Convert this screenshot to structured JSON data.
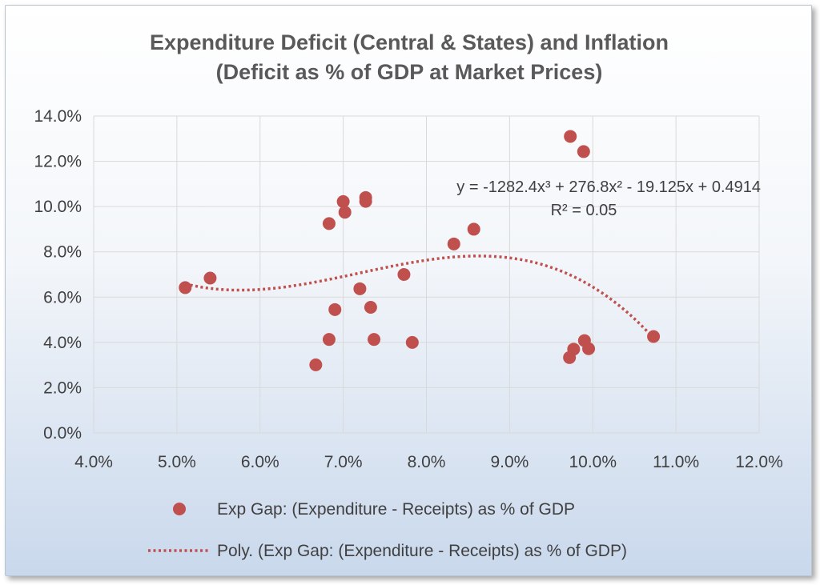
{
  "chart_data": {
    "type": "scatter",
    "title": [
      "Expenditure Deficit (Central & States) and Inflation",
      "(Deficit as % of GDP at Market Prices)"
    ],
    "xlabel": "",
    "ylabel": "",
    "xlim": [
      0.04,
      0.12
    ],
    "ylim": [
      0.0,
      0.14
    ],
    "x_ticks": [
      "4.0%",
      "5.0%",
      "6.0%",
      "7.0%",
      "8.0%",
      "9.0%",
      "10.0%",
      "11.0%",
      "12.0%"
    ],
    "y_ticks": [
      "0.0%",
      "2.0%",
      "4.0%",
      "6.0%",
      "8.0%",
      "10.0%",
      "12.0%",
      "14.0%"
    ],
    "grid": true,
    "legend_position": "bottom",
    "series": [
      {
        "name": "Exp Gap: (Expenditure - Receipts) as % of GDP",
        "color": "#c0504d",
        "points": [
          [
            0.051,
            0.0642
          ],
          [
            0.054,
            0.0684
          ],
          [
            0.0667,
            0.0301
          ],
          [
            0.0683,
            0.0413
          ],
          [
            0.0683,
            0.0925
          ],
          [
            0.069,
            0.0545
          ],
          [
            0.07,
            0.1022
          ],
          [
            0.0702,
            0.0975
          ],
          [
            0.072,
            0.0637
          ],
          [
            0.0727,
            0.104
          ],
          [
            0.0727,
            0.1023
          ],
          [
            0.0733,
            0.0555
          ],
          [
            0.0737,
            0.0413
          ],
          [
            0.0773,
            0.07
          ],
          [
            0.0783,
            0.04
          ],
          [
            0.0833,
            0.0835
          ],
          [
            0.0857,
            0.09
          ],
          [
            0.0972,
            0.0333
          ],
          [
            0.0977,
            0.037
          ],
          [
            0.0973,
            0.131
          ],
          [
            0.099,
            0.0408
          ],
          [
            0.0995,
            0.0372
          ],
          [
            0.0989,
            0.1243
          ],
          [
            0.1073,
            0.0426
          ]
        ]
      }
    ],
    "trendline": {
      "name": "Poly. (Exp Gap: (Expenditure - Receipts) as % of GDP)",
      "type": "polynomial",
      "order": 3,
      "color": "#c0504d",
      "coefficients": [
        -1282.4,
        276.8,
        -19.125,
        0.4914
      ],
      "x_range": [
        0.051,
        0.1073
      ],
      "equation": "y = -1282.4x³ + 276.8x² - 19.125x + 0.4914",
      "r_squared": "R² = 0.05"
    }
  }
}
